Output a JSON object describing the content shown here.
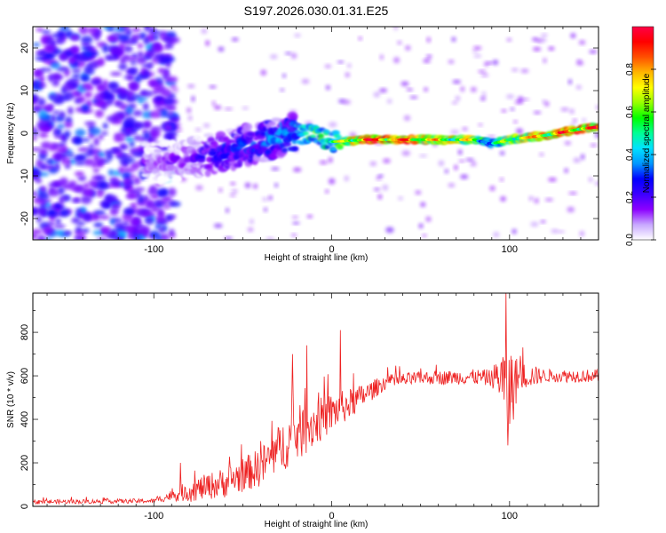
{
  "title": "S197.2026.030.01.31.E25",
  "chart_data": [
    {
      "type": "heatmap",
      "name": "spectrogram",
      "xlabel": "Height of straight line (km)",
      "ylabel": "Frequency (Hz)",
      "xlim": [
        -168,
        150
      ],
      "ylim": [
        -25,
        25
      ],
      "xticks": [
        -100,
        0,
        100
      ],
      "xtick_labels": [
        "-100",
        "0",
        "100"
      ],
      "yticks": [
        -20,
        -10,
        0,
        10,
        20
      ],
      "ytick_labels": [
        "-20",
        "-10",
        "0",
        "10",
        "20"
      ],
      "colorbar": {
        "label": "Normalized spectral amplitude",
        "range": [
          0,
          1
        ],
        "ticks": [
          0.0,
          0.2,
          0.4,
          0.6,
          0.8
        ],
        "tick_labels": [
          "0.0",
          "0.2",
          "0.4",
          "0.6",
          "0.8"
        ],
        "colormap": [
          "#ffffff",
          "#c8a8ff",
          "#8c00ff",
          "#3c00ff",
          "#0000ff",
          "#0096ff",
          "#00e1ff",
          "#00ff96",
          "#00ff00",
          "#96ff00",
          "#ffff00",
          "#ffb400",
          "#ff5000",
          "#ff0000",
          "#ff0046"
        ]
      },
      "ridge": {
        "x": [
          -100,
          -80,
          -60,
          -40,
          -30,
          -20,
          -10,
          0,
          20,
          40,
          60,
          80,
          90,
          100,
          120,
          140,
          150
        ],
        "frequency": [
          -7,
          -6,
          -4,
          -2,
          -1,
          0,
          -0.5,
          -2,
          -1.5,
          -1.5,
          -1.5,
          -1.5,
          -2.5,
          -1.5,
          -0.5,
          1,
          1.5
        ],
        "amplitude": [
          0.15,
          0.2,
          0.3,
          0.35,
          0.4,
          0.45,
          0.6,
          0.55,
          0.95,
          0.9,
          0.75,
          0.7,
          0.4,
          0.75,
          0.8,
          0.9,
          0.85
        ]
      }
    },
    {
      "type": "line",
      "name": "snr",
      "xlabel": "Height of straight line (km)",
      "ylabel": "SNR (10 * v/v)",
      "xlim": [
        -168,
        150
      ],
      "ylim": [
        0,
        980
      ],
      "xticks": [
        -100,
        0,
        100
      ],
      "xtick_labels": [
        "-100",
        "0",
        "100"
      ],
      "yticks": [
        0,
        200,
        400,
        600,
        800
      ],
      "ytick_labels": [
        "0",
        "200",
        "400",
        "600",
        "800"
      ],
      "color": "#ee2222",
      "envelope": {
        "x": [
          -168,
          -100,
          -90,
          -80,
          -60,
          -40,
          -30,
          -20,
          -10,
          0,
          10,
          20,
          30,
          50,
          80,
          90,
          95,
          100,
          105,
          120,
          150
        ],
        "mean": [
          20,
          25,
          50,
          70,
          110,
          180,
          260,
          330,
          380,
          430,
          470,
          520,
          570,
          590,
          595,
          590,
          600,
          520,
          600,
          600,
          600
        ],
        "spread": [
          10,
          10,
          25,
          50,
          70,
          90,
          110,
          130,
          110,
          90,
          70,
          50,
          35,
          30,
          35,
          40,
          120,
          230,
          70,
          30,
          30
        ]
      },
      "peaks": [
        {
          "x": -85,
          "y": 200
        },
        {
          "x": -40,
          "y": 300
        },
        {
          "x": -22,
          "y": 700
        },
        {
          "x": -14,
          "y": 740
        },
        {
          "x": 5,
          "y": 810
        },
        {
          "x": 98,
          "y": 980
        },
        {
          "x": 99,
          "y": 280
        }
      ]
    }
  ]
}
